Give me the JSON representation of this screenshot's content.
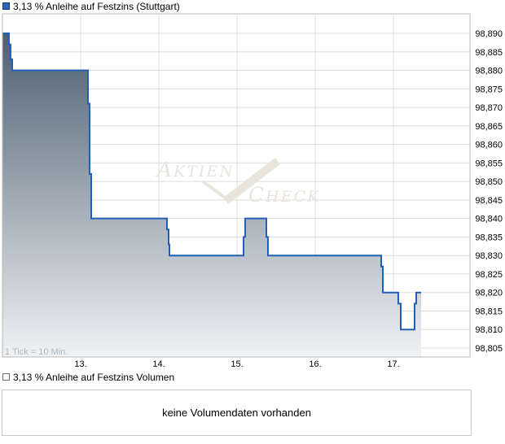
{
  "header": {
    "title": "3,13 % Anleihe auf Festzins (Stuttgart)"
  },
  "chart_data": {
    "type": "area",
    "title": "3,13 % Anleihe auf Festzins (Stuttgart)",
    "note": "1 Tick = 10 Min.",
    "x_tick_labels": [
      "13.",
      "14.",
      "15.",
      "16.",
      "17."
    ],
    "x_tick_days": [
      13,
      14,
      15,
      16,
      17
    ],
    "x_range_days": [
      12.0,
      17.98
    ],
    "y_ticks": [
      98.89,
      98.885,
      98.88,
      98.875,
      98.87,
      98.865,
      98.86,
      98.855,
      98.85,
      98.845,
      98.84,
      98.835,
      98.83,
      98.825,
      98.82,
      98.815,
      98.81,
      98.805
    ],
    "y_tick_labels": [
      "98,890",
      "98,885",
      "98,880",
      "98,875",
      "98,870",
      "98,865",
      "98,860",
      "98,855",
      "98,850",
      "98,845",
      "98,840",
      "98,835",
      "98,830",
      "98,825",
      "98,820",
      "98,815",
      "98,810",
      "98,805"
    ],
    "grid": true,
    "legend_position": "top-left",
    "series": [
      {
        "name": "3,13 % Anleihe auf Festzins (Stuttgart)",
        "style": "step-area",
        "step_points": [
          [
            12.0,
            98.89
          ],
          [
            12.083,
            98.887
          ],
          [
            12.104,
            98.883
          ],
          [
            12.125,
            98.88
          ],
          [
            13.094,
            98.871
          ],
          [
            13.115,
            98.852
          ],
          [
            13.135,
            98.84
          ],
          [
            14.104,
            98.837
          ],
          [
            14.125,
            98.833
          ],
          [
            14.135,
            98.83
          ],
          [
            15.083,
            98.835
          ],
          [
            15.104,
            98.84
          ],
          [
            15.375,
            98.835
          ],
          [
            15.396,
            98.83
          ],
          [
            16.844,
            98.827
          ],
          [
            16.865,
            98.82
          ],
          [
            17.063,
            98.817
          ],
          [
            17.094,
            98.81
          ],
          [
            17.271,
            98.817
          ],
          [
            17.292,
            98.82
          ],
          [
            17.354,
            98.82
          ]
        ]
      }
    ]
  },
  "watermark": {
    "word1_first": "A",
    "word1_rest": "KTIEN",
    "word2_first": "C",
    "word2_rest": "HECK"
  },
  "colors": {
    "line": "#2160b4",
    "fill_top": "#42566a",
    "fill_bottom": "#f0f2f4",
    "gridline": "#dcdcdc",
    "frame": "#b8b8b8",
    "tick_note": "#aeb8c0",
    "watermark": "#e9e5dd",
    "legend_square": "#2d64b5"
  },
  "volume": {
    "title": "3,13 % Anleihe auf Festzins Volumen",
    "empty_message": "keine Volumendaten vorhanden"
  }
}
